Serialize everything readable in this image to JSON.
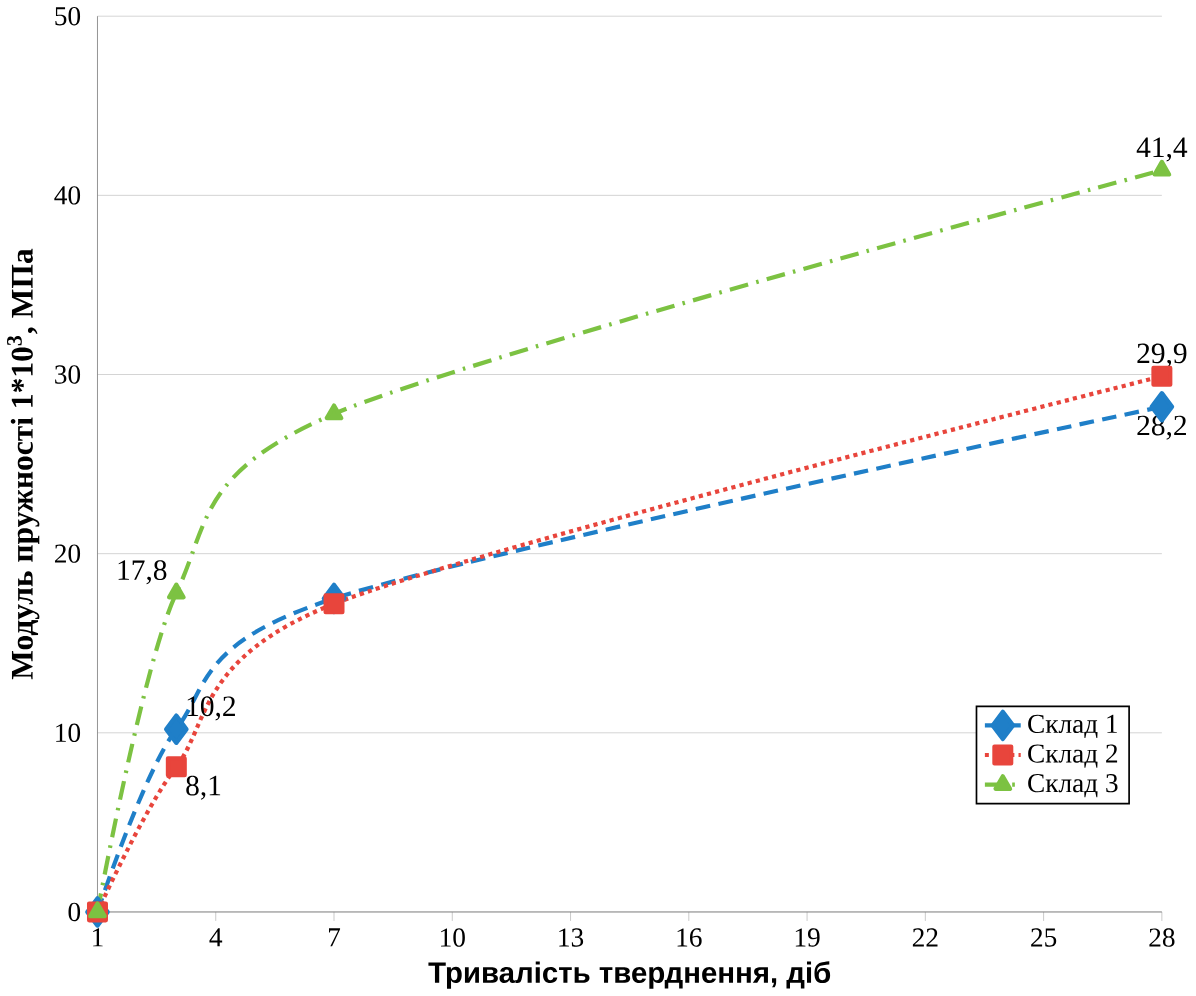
{
  "chart_data": {
    "type": "line",
    "xlabel": "Тривалість тверднення, діб",
    "ylabel": "Модуль пружності 1*10$^{3}$, МПа",
    "x": [
      1,
      3,
      7,
      28
    ],
    "xlim": [
      1,
      28
    ],
    "xticks": [
      1,
      4,
      7,
      10,
      13,
      16,
      19,
      22,
      25,
      28
    ],
    "ylim": [
      0,
      50
    ],
    "yticks": [
      0,
      10,
      20,
      30,
      40,
      50
    ],
    "grid": "y",
    "legend": "bottom right",
    "series": [
      {
        "name": "Склад 1",
        "color": "#1f7fc8",
        "values": [
          0,
          10.2,
          17.5,
          28.2
        ],
        "marker": "diamond",
        "line_style": "dashed",
        "value_labels": [
          null,
          "10,2",
          null,
          "28,2"
        ]
      },
      {
        "name": "Склад 2",
        "color": "#e8453c",
        "values": [
          0,
          8.1,
          17.2,
          29.9
        ],
        "marker": "square",
        "line_style": "dotted",
        "value_labels": [
          null,
          "8,1",
          null,
          "29,9"
        ]
      },
      {
        "name": "Склад 3",
        "color": "#7cc242",
        "values": [
          0,
          17.8,
          27.8,
          41.4
        ],
        "marker": "triangle",
        "line_style": "dashdotted",
        "value_labels": [
          null,
          "17,8",
          null,
          "41,4"
        ]
      }
    ]
  }
}
